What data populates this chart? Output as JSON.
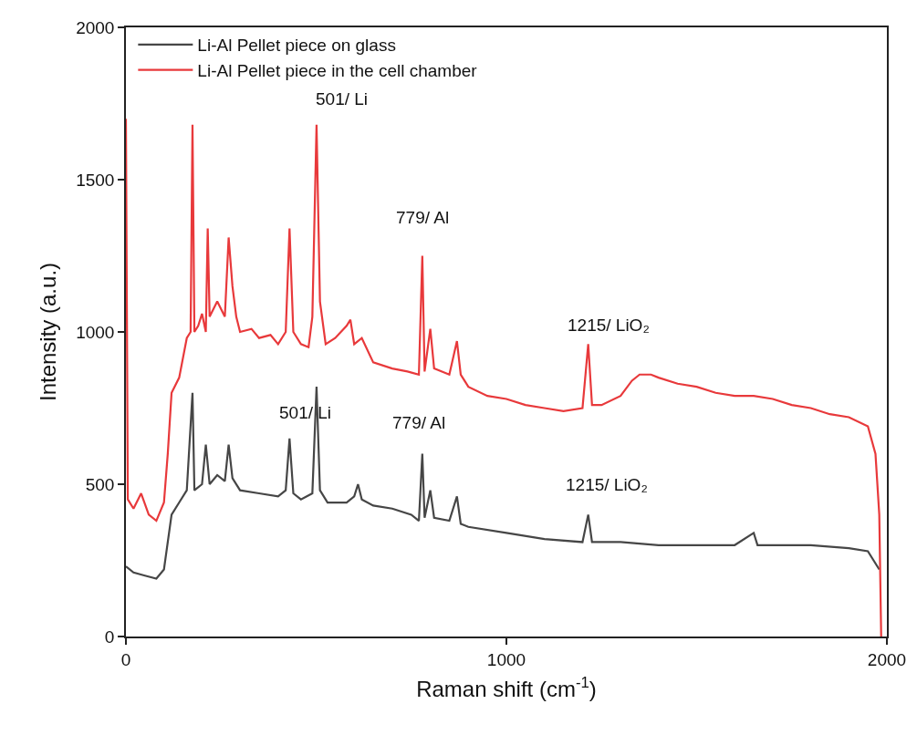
{
  "chart_data": {
    "type": "line",
    "xlabel": "Raman shift (cm$^{-1}$)",
    "ylabel": "Intensity (a.u.)",
    "xlim": [
      0,
      2000
    ],
    "xticks": [
      0,
      1000,
      2000
    ],
    "ylim": [
      0,
      2000
    ],
    "yticks": [
      0,
      500,
      1000,
      1500,
      2000
    ],
    "legend": "top left",
    "line_style": "solid",
    "marker": "none",
    "series": [
      {
        "name": "Li-Al Pellet piece on glass",
        "color": "#464646",
        "x": [
          0,
          20,
          50,
          80,
          100,
          110,
          120,
          140,
          160,
          175,
          180,
          200,
          210,
          220,
          240,
          260,
          270,
          280,
          300,
          350,
          400,
          420,
          430,
          440,
          460,
          490,
          501,
          510,
          530,
          580,
          600,
          610,
          620,
          650,
          700,
          750,
          770,
          779,
          785,
          800,
          810,
          850,
          870,
          880,
          900,
          1000,
          1100,
          1200,
          1215,
          1225,
          1300,
          1400,
          1500,
          1600,
          1650,
          1660,
          1700,
          1800,
          1900,
          1950,
          1980
        ],
        "values": [
          230,
          210,
          200,
          190,
          220,
          310,
          400,
          440,
          480,
          800,
          480,
          500,
          630,
          500,
          530,
          510,
          630,
          520,
          480,
          470,
          460,
          480,
          650,
          470,
          450,
          470,
          820,
          480,
          440,
          440,
          460,
          500,
          450,
          430,
          420,
          400,
          380,
          600,
          390,
          480,
          390,
          380,
          460,
          370,
          360,
          340,
          320,
          310,
          400,
          310,
          310,
          300,
          300,
          300,
          340,
          300,
          300,
          300,
          290,
          280,
          220
        ]
      },
      {
        "name": "Li-Al Pellet piece in the cell chamber",
        "color": "#e8393b",
        "x": [
          0,
          5,
          20,
          40,
          60,
          80,
          100,
          110,
          120,
          140,
          160,
          170,
          175,
          180,
          190,
          200,
          210,
          215,
          220,
          240,
          260,
          270,
          280,
          290,
          300,
          330,
          350,
          380,
          400,
          420,
          430,
          440,
          460,
          480,
          490,
          501,
          510,
          525,
          550,
          580,
          590,
          600,
          620,
          650,
          700,
          740,
          770,
          779,
          785,
          800,
          810,
          850,
          870,
          880,
          900,
          950,
          1000,
          1050,
          1100,
          1150,
          1200,
          1215,
          1225,
          1250,
          1300,
          1330,
          1350,
          1380,
          1400,
          1450,
          1500,
          1550,
          1600,
          1650,
          1700,
          1750,
          1800,
          1850,
          1900,
          1950,
          1970,
          1980,
          1985
        ],
        "values": [
          1700,
          450,
          420,
          470,
          400,
          380,
          440,
          600,
          800,
          850,
          980,
          1000,
          1680,
          1000,
          1020,
          1060,
          1000,
          1340,
          1050,
          1100,
          1050,
          1310,
          1150,
          1050,
          1000,
          1010,
          980,
          990,
          960,
          1000,
          1340,
          1000,
          960,
          950,
          1050,
          1680,
          1100,
          960,
          980,
          1020,
          1040,
          960,
          980,
          900,
          880,
          870,
          860,
          1250,
          870,
          1010,
          880,
          860,
          970,
          860,
          820,
          790,
          780,
          760,
          750,
          740,
          750,
          960,
          760,
          760,
          790,
          840,
          860,
          860,
          850,
          830,
          820,
          800,
          790,
          790,
          780,
          760,
          750,
          730,
          720,
          690,
          600,
          400,
          0
        ]
      }
    ],
    "annotations": [
      {
        "text": "501/ Li",
        "x": 501,
        "y": 1680
      },
      {
        "text": "779/ Al",
        "x": 779,
        "y": 1250
      },
      {
        "text": "1215/ LiO₂",
        "x": 1215,
        "y": 960
      },
      {
        "text": "501/ Li",
        "x": 501,
        "y": 820
      },
      {
        "text": "779/ Al",
        "x": 779,
        "y": 600
      },
      {
        "text": "1215/ LiO₂",
        "x": 1215,
        "y": 400
      }
    ]
  }
}
